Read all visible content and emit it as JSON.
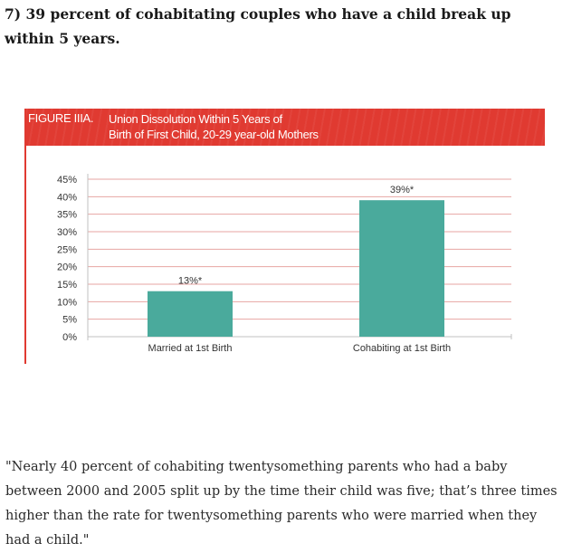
{
  "heading": "7) 39 percent of cohabitating couples who have a child break up within 5 years.",
  "figure": {
    "label": "FIGURE IIIA.",
    "title_line1": "Union Dissolution Within 5 Years of",
    "title_line2": "Birth of First Child, 20-29 year-old Mothers"
  },
  "chart_data": {
    "type": "bar",
    "title": "Union Dissolution Within 5 Years of Birth of First Child, 20-29 year-old Mothers",
    "categories": [
      "Married at 1st Birth",
      "Cohabiting at 1st Birth"
    ],
    "values": [
      13,
      39
    ],
    "data_labels": [
      "13%*",
      "39%*"
    ],
    "yticks": [
      "0%",
      "5%",
      "10%",
      "15%",
      "20%",
      "25%",
      "30%",
      "35%",
      "40%",
      "45%"
    ],
    "ylim": [
      0,
      45
    ],
    "xlabel": "",
    "ylabel": "",
    "grid": true,
    "colors": {
      "bar": "#4aaa9c",
      "grid": "#e7a6a3",
      "axis": "#c0c0c0",
      "accent": "#e03a31"
    }
  },
  "quote": "\"Nearly 40 percent of cohabiting twentysomething parents who had a baby between 2000 and 2005 split up by the time their child was five; that’s three times higher than the rate for twentysomething parents who were married when they had a child.\""
}
